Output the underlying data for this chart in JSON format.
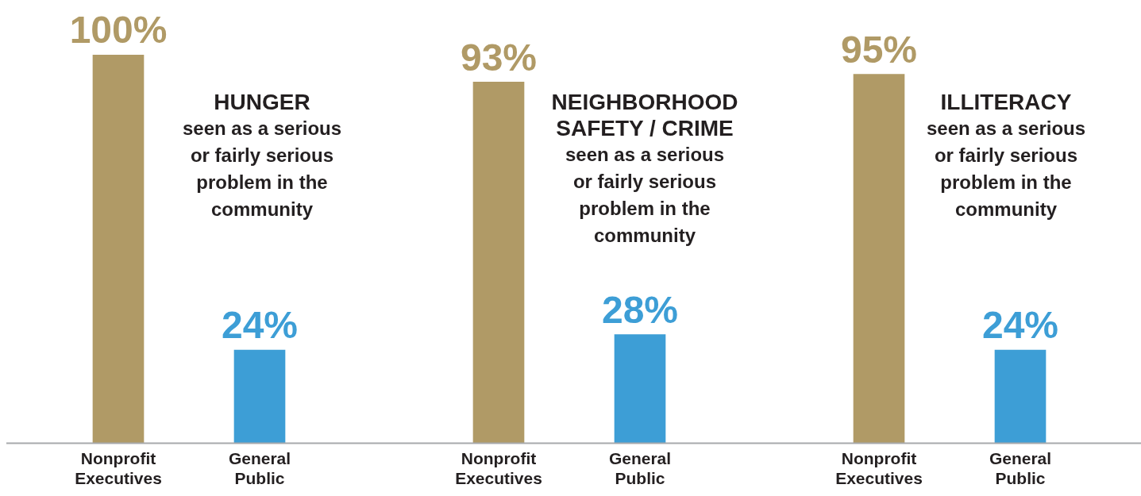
{
  "chart_data": [
    {
      "type": "bar",
      "title": "HUNGER",
      "subtitle": "seen as a serious or fairly serious problem in the community",
      "categories": [
        "Nonprofit Executives",
        "General Public"
      ],
      "values": [
        100,
        24
      ],
      "value_labels": [
        "100%",
        "24%"
      ],
      "colors": [
        "#b09a66",
        "#3d9ed6"
      ],
      "tick_labels": "x"
    },
    {
      "type": "bar",
      "title": "NEIGHBORHOOD SAFETY / CRIME",
      "subtitle": "seen as a serious or fairly serious problem in the community",
      "categories": [
        "Nonprofit Executives",
        "General Public"
      ],
      "values": [
        93,
        28
      ],
      "value_labels": [
        "93%",
        "28%"
      ],
      "colors": [
        "#b09a66",
        "#3d9ed6"
      ],
      "tick_labels": "x"
    },
    {
      "type": "bar",
      "title": "ILLITERACY",
      "subtitle": "seen as a serious or fairly serious problem in the community",
      "categories": [
        "Nonprofit Executives",
        "General Public"
      ],
      "values": [
        95,
        24
      ],
      "value_labels": [
        "95%",
        "24%"
      ],
      "colors": [
        "#b09a66",
        "#3d9ed6"
      ],
      "tick_labels": "x"
    }
  ]
}
